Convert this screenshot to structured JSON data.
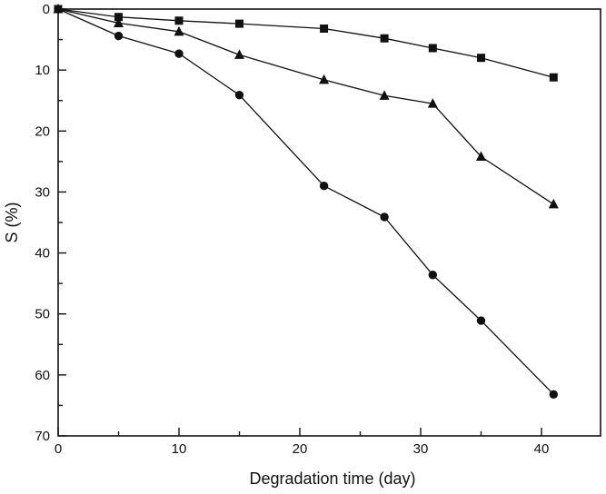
{
  "chart_data": {
    "type": "line",
    "xlabel": "Degradation time (day)",
    "ylabel": "S (%)",
    "xlim": [
      0,
      45
    ],
    "ylim": [
      0,
      70
    ],
    "y_inverted": true,
    "x_ticks": [
      0,
      10,
      20,
      30,
      40
    ],
    "x_minor_step": 5,
    "y_ticks": [
      0,
      10,
      20,
      30,
      40,
      50,
      60,
      70
    ],
    "y_minor_step": 5,
    "grid": false,
    "series": [
      {
        "marker": "square",
        "x": [
          0,
          5,
          10,
          15,
          22,
          27,
          31,
          35,
          41
        ],
        "values": [
          0,
          1.3,
          1.9,
          2.4,
          3.2,
          4.8,
          6.4,
          8.0,
          11.2
        ]
      },
      {
        "marker": "triangle",
        "x": [
          0,
          5,
          10,
          15,
          22,
          27,
          31,
          35,
          41
        ],
        "values": [
          0,
          2.3,
          3.7,
          7.5,
          11.6,
          14.2,
          15.5,
          24.2,
          32.0
        ]
      },
      {
        "marker": "circle",
        "x": [
          0,
          5,
          10,
          15,
          22,
          27,
          31,
          35,
          41
        ],
        "values": [
          0,
          4.4,
          7.3,
          14.1,
          29.0,
          34.1,
          43.6,
          51.1,
          63.2
        ]
      }
    ]
  }
}
